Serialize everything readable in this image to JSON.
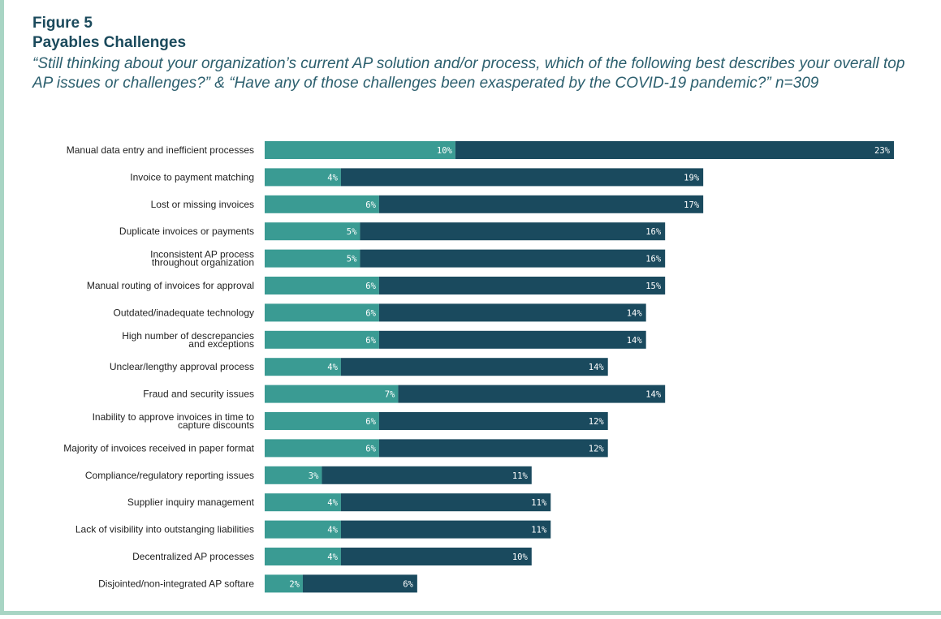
{
  "figure": {
    "number": "Figure 5",
    "title": "Payables Challenges",
    "subtitle": "“Still thinking about your organization’s current AP solution and/or process, which of the following best describes your overall top AP issues or challenges?” & “Have any of those challenges been exasperated by the COVID-19 pandemic?” n=309"
  },
  "colors": {
    "exasperated": "#3a9b93",
    "top_issue": "#1a4a5e",
    "frame": "#a8d5c4"
  },
  "chart_data": {
    "type": "bar",
    "orientation": "horizontal",
    "stacked": true,
    "categories": [
      [
        "Manual data entry and inefficient processes"
      ],
      [
        "Invoice to payment matching"
      ],
      [
        "Lost or missing invoices"
      ],
      [
        "Duplicate invoices or payments"
      ],
      [
        "Inconsistent AP process",
        "throughout organization"
      ],
      [
        "Manual routing of invoices for approval"
      ],
      [
        "Outdated/inadequate technology"
      ],
      [
        "High number of descrepancies",
        "and exceptions"
      ],
      [
        "Unclear/lengthy approval process"
      ],
      [
        "Fraud and security issues"
      ],
      [
        "Inability to approve invoices in time to",
        "capture discounts"
      ],
      [
        "Majority of invoices received in paper format"
      ],
      [
        "Compliance/regulatory reporting issues"
      ],
      [
        "Supplier inquiry management"
      ],
      [
        "Lack of visibility into outstanging liabilities"
      ],
      [
        "Decentralized AP processes"
      ],
      [
        "Disjointed/non-integrated AP softare"
      ]
    ],
    "series": [
      {
        "values": [
          10,
          4,
          6,
          5,
          5,
          6,
          6,
          6,
          4,
          7,
          6,
          6,
          3,
          4,
          4,
          4,
          2
        ]
      },
      {
        "values": [
          23,
          19,
          17,
          16,
          16,
          15,
          14,
          14,
          14,
          14,
          12,
          12,
          11,
          11,
          11,
          10,
          6
        ]
      }
    ],
    "value_suffix": "%",
    "xlim": [
      0,
      33
    ],
    "grid": false,
    "legend": "none"
  }
}
